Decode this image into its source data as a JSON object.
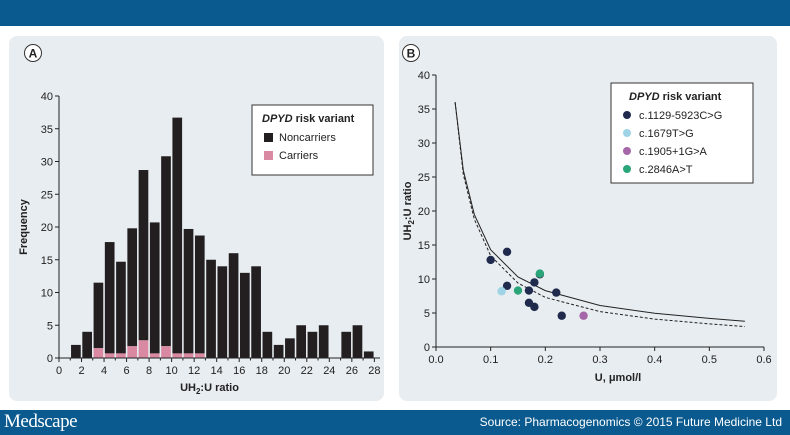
{
  "colors": {
    "header_bar": "#0a5a8f",
    "panel_bg": "#e8edf1",
    "noncarrier": "#231f20",
    "carrier": "#d98aa2"
  },
  "footer": {
    "brand": "Medscape",
    "source": "Source: Pharmacogenomics © 2015 Future Medicine Ltd"
  },
  "chart_data": [
    {
      "panel_label": "A",
      "type": "bar",
      "xlabel_main": "UH",
      "xlabel_sub": "2",
      "xlabel_rest": ":U ratio",
      "ylabel": "Frequency",
      "xlim": [
        0,
        28.5
      ],
      "ylim": [
        0,
        40
      ],
      "x_ticks": [
        0,
        2,
        4,
        6,
        8,
        10,
        12,
        14,
        16,
        18,
        20,
        22,
        24,
        26,
        28
      ],
      "y_ticks": [
        0,
        5,
        10,
        15,
        20,
        25,
        30,
        35,
        40
      ],
      "bin_width": 0.86,
      "bins": [
        1.5,
        2.5,
        3.5,
        4.5,
        5.5,
        6.5,
        7.5,
        8.5,
        9.5,
        10.5,
        11.5,
        12.5,
        13.5,
        14.5,
        15.5,
        16.5,
        17.5,
        18.5,
        19.5,
        20.5,
        21.5,
        22.5,
        23.5,
        24.5,
        25.5,
        26.5,
        27.5
      ],
      "legend": {
        "title_italic": "DPYD",
        "title_rest": " risk variant",
        "position": "top-right"
      },
      "series": [
        {
          "name": "Noncarriers",
          "color": "#231f20",
          "values": [
            2,
            4,
            10,
            17,
            14,
            18,
            26,
            20,
            29,
            36,
            19,
            18,
            15,
            14,
            16,
            13,
            14,
            4,
            2,
            3,
            5,
            4,
            5,
            0,
            4,
            5,
            1
          ]
        },
        {
          "name": "Carriers",
          "color": "#d98aa2",
          "values": [
            0,
            0,
            1.5,
            0.7,
            0.7,
            1.8,
            2.7,
            0.7,
            1.8,
            0.7,
            0.7,
            0.7,
            0,
            0,
            0,
            0,
            0,
            0,
            0,
            0,
            0,
            0,
            0,
            0,
            0,
            0,
            0
          ]
        }
      ]
    },
    {
      "panel_label": "B",
      "type": "scatter",
      "xlabel": "U, μmol/l",
      "ylabel_main": "UH",
      "ylabel_sub": "2",
      "ylabel_rest": ":U ratio",
      "xlim": [
        0,
        0.6
      ],
      "ylim": [
        0,
        40
      ],
      "x_ticks": [
        0.0,
        0.1,
        0.2,
        0.3,
        0.4,
        0.5,
        0.6
      ],
      "x_tick_labels": [
        "0.0",
        "0.1",
        "0.2",
        "0.3",
        "0.4",
        "0.5",
        "0.6"
      ],
      "y_ticks": [
        0,
        5,
        10,
        15,
        20,
        25,
        30,
        35,
        40
      ],
      "legend": {
        "title_italic": "DPYD",
        "title_rest": " risk variant",
        "position": "top-right"
      },
      "series": [
        {
          "name": "c.1129-5923C>G",
          "color": "#1f2a4d",
          "points": [
            [
              0.1,
              12.8
            ],
            [
              0.13,
              14.0
            ],
            [
              0.13,
              9.0
            ],
            [
              0.17,
              6.5
            ],
            [
              0.18,
              5.9
            ],
            [
              0.17,
              8.3
            ],
            [
              0.18,
              9.5
            ],
            [
              0.19,
              10.7
            ],
            [
              0.22,
              8.0
            ],
            [
              0.23,
              4.6
            ]
          ]
        },
        {
          "name": "c.1679T>G",
          "color": "#9fd3e6",
          "points": [
            [
              0.12,
              8.2
            ]
          ]
        },
        {
          "name": "c.1905+1G>A",
          "color": "#a667a8",
          "points": [
            [
              0.27,
              4.6
            ]
          ]
        },
        {
          "name": "c.2846A>T",
          "color": "#2aa57a",
          "points": [
            [
              0.15,
              8.3
            ],
            [
              0.19,
              10.8
            ]
          ]
        }
      ],
      "curves": [
        {
          "style": "solid",
          "points": [
            [
              0.035,
              36
            ],
            [
              0.05,
              26
            ],
            [
              0.07,
              19.5
            ],
            [
              0.1,
              14.3
            ],
            [
              0.15,
              10.3
            ],
            [
              0.2,
              8.3
            ],
            [
              0.3,
              6.1
            ],
            [
              0.4,
              4.95
            ],
            [
              0.5,
              4.2
            ],
            [
              0.565,
              3.8
            ]
          ]
        },
        {
          "style": "dashed",
          "points": [
            [
              0.035,
              36
            ],
            [
              0.05,
              25.4
            ],
            [
              0.07,
              18.8
            ],
            [
              0.1,
              13.4
            ],
            [
              0.15,
              9.4
            ],
            [
              0.2,
              7.3
            ],
            [
              0.3,
              5.2
            ],
            [
              0.4,
              4.1
            ],
            [
              0.5,
              3.4
            ],
            [
              0.565,
              3.0
            ]
          ]
        }
      ]
    }
  ]
}
